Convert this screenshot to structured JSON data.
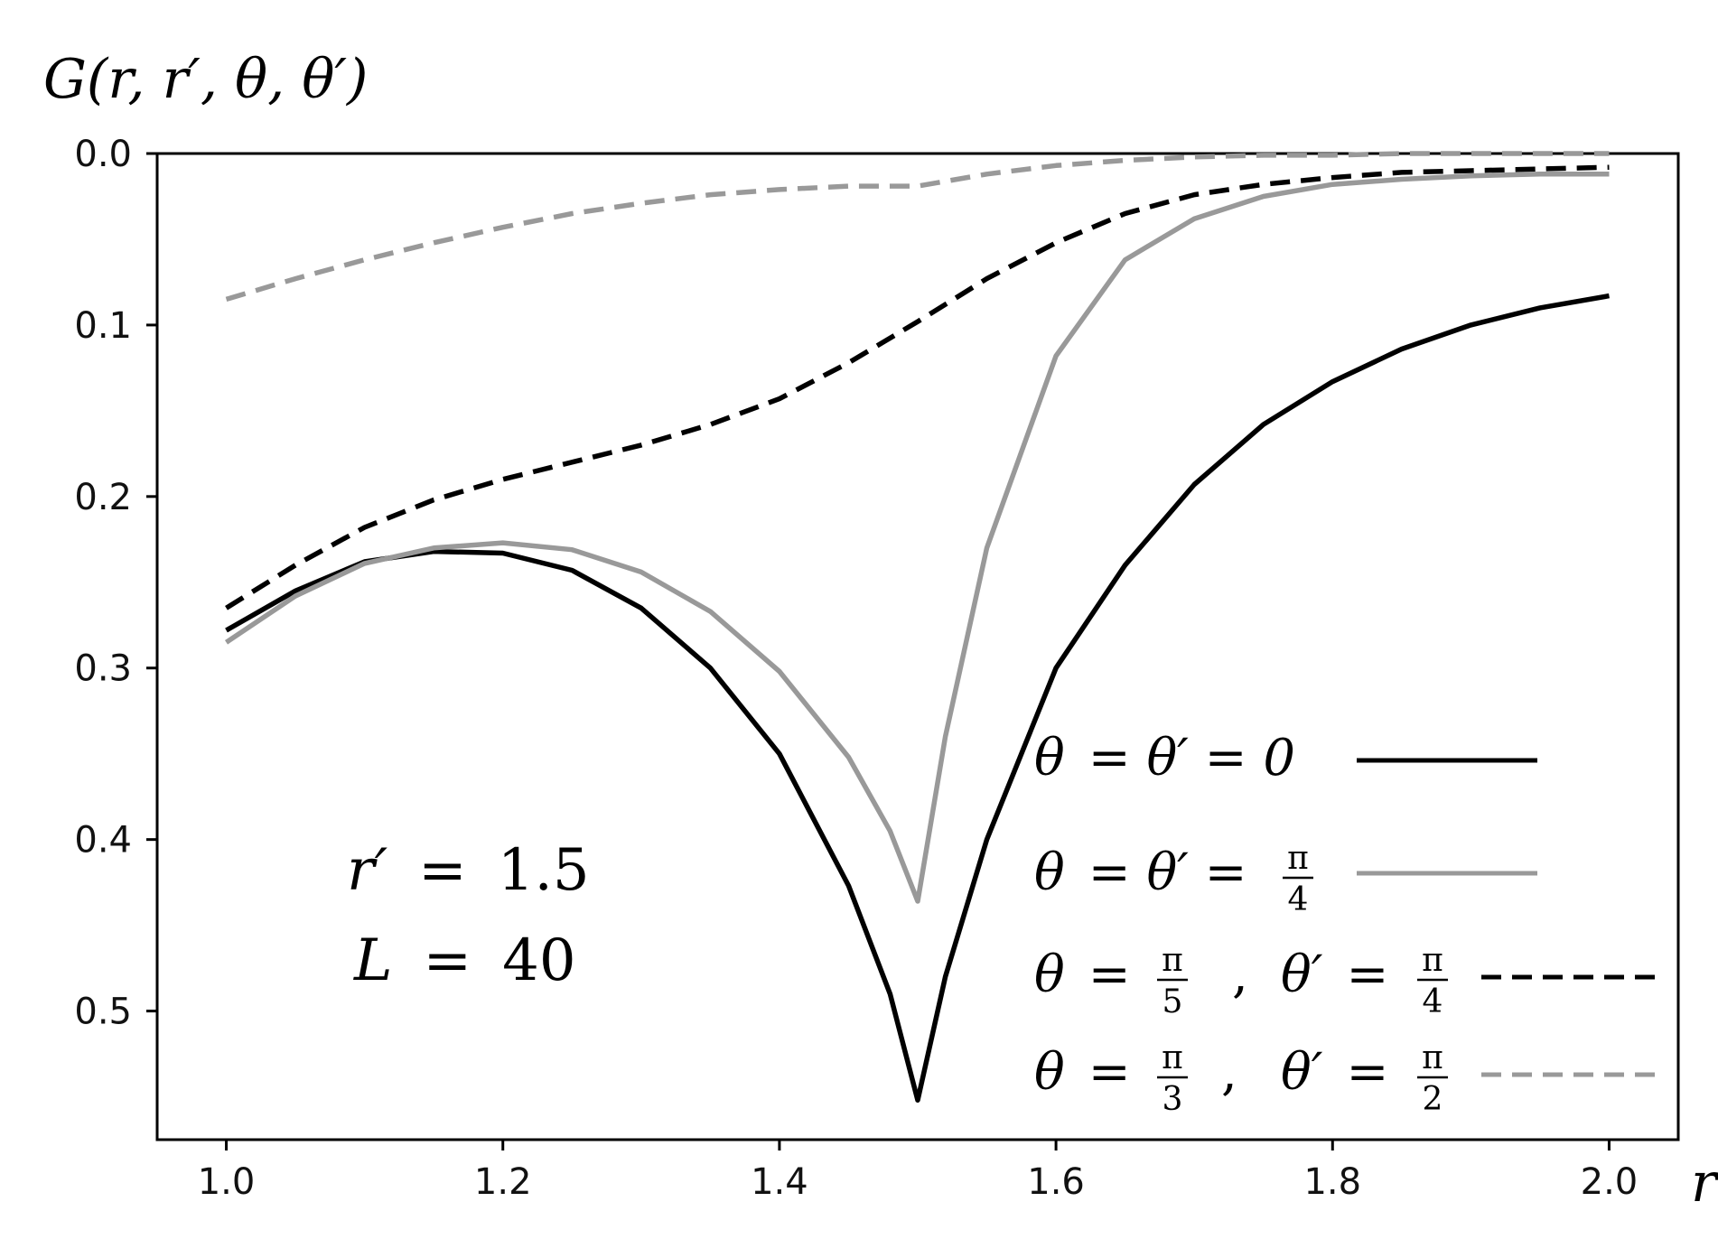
{
  "chart_data": {
    "type": "line",
    "ylabel": "G(r, r′, θ, θ′)",
    "xlabel": "r",
    "xlim": [
      0.95,
      2.05
    ],
    "ylim": [
      0.0,
      0.575
    ],
    "y_inverted": true,
    "x_ticks": [
      1.0,
      1.2,
      1.4,
      1.6,
      1.8,
      2.0
    ],
    "x_tick_labels": [
      "1.0",
      "1.2",
      "1.4",
      "1.6",
      "1.8",
      "2.0"
    ],
    "y_ticks": [
      0.0,
      0.1,
      0.2,
      0.3,
      0.4,
      0.5
    ],
    "y_tick_labels": [
      "0.0",
      "0.1",
      "0.2",
      "0.3",
      "0.4",
      "0.5"
    ],
    "grid": false,
    "legend_placement": "lower-right",
    "annotation": {
      "line1": {
        "lhs": "r′",
        "eq": "=",
        "rhs": "1.5"
      },
      "line2": {
        "lhs": "L",
        "eq": "=",
        "rhs": "40"
      }
    },
    "series": [
      {
        "legend": {
          "theta": "θ",
          "rest": "= θ′ = 0"
        },
        "color": "#000000",
        "dash": "solid",
        "x": [
          1.0,
          1.05,
          1.1,
          1.15,
          1.2,
          1.25,
          1.3,
          1.35,
          1.4,
          1.45,
          1.48,
          1.5,
          1.52,
          1.55,
          1.6,
          1.65,
          1.7,
          1.75,
          1.8,
          1.85,
          1.9,
          1.95,
          2.0
        ],
        "y": [
          0.278,
          0.255,
          0.238,
          0.232,
          0.233,
          0.243,
          0.265,
          0.3,
          0.35,
          0.427,
          0.49,
          0.552,
          0.48,
          0.4,
          0.3,
          0.24,
          0.193,
          0.158,
          0.133,
          0.114,
          0.1,
          0.09,
          0.083
        ]
      },
      {
        "legend": {
          "theta": "θ",
          "rest": "= θ′ =",
          "frac": {
            "num": "π",
            "den": "4"
          }
        },
        "color": "#999999",
        "dash": "solid",
        "x": [
          1.0,
          1.05,
          1.1,
          1.15,
          1.2,
          1.25,
          1.3,
          1.35,
          1.4,
          1.45,
          1.48,
          1.5,
          1.52,
          1.55,
          1.6,
          1.65,
          1.7,
          1.75,
          1.8,
          1.85,
          1.9,
          1.95,
          2.0
        ],
        "y": [
          0.285,
          0.258,
          0.239,
          0.23,
          0.227,
          0.231,
          0.244,
          0.267,
          0.302,
          0.352,
          0.395,
          0.436,
          0.34,
          0.23,
          0.118,
          0.062,
          0.038,
          0.025,
          0.018,
          0.015,
          0.013,
          0.012,
          0.012
        ]
      },
      {
        "legend": {
          "theta": "θ",
          "rest": "=",
          "frac": {
            "num": "π",
            "den": "5"
          },
          "sep": ",",
          "theta2": "θ′",
          "rest2": "=",
          "frac2": {
            "num": "π",
            "den": "4"
          }
        },
        "color": "#000000",
        "dash": "dashed",
        "x": [
          1.0,
          1.05,
          1.1,
          1.15,
          1.2,
          1.25,
          1.3,
          1.35,
          1.4,
          1.45,
          1.5,
          1.55,
          1.6,
          1.65,
          1.7,
          1.75,
          1.8,
          1.85,
          1.9,
          1.95,
          2.0
        ],
        "y": [
          0.265,
          0.24,
          0.218,
          0.202,
          0.19,
          0.18,
          0.17,
          0.158,
          0.143,
          0.122,
          0.098,
          0.073,
          0.052,
          0.035,
          0.024,
          0.018,
          0.014,
          0.011,
          0.01,
          0.009,
          0.008
        ]
      },
      {
        "legend": {
          "theta": "θ",
          "rest": "=",
          "frac": {
            "num": "π",
            "den": "3"
          },
          "sep": ",",
          "theta2": "θ′",
          "rest2": "=",
          "frac2": {
            "num": "π",
            "den": "2"
          }
        },
        "color": "#999999",
        "dash": "dashed",
        "x": [
          1.0,
          1.05,
          1.1,
          1.15,
          1.2,
          1.25,
          1.3,
          1.35,
          1.4,
          1.45,
          1.5,
          1.55,
          1.6,
          1.65,
          1.7,
          1.75,
          1.8,
          1.85,
          1.9,
          1.95,
          2.0
        ],
        "y": [
          0.085,
          0.073,
          0.062,
          0.052,
          0.043,
          0.035,
          0.029,
          0.024,
          0.021,
          0.019,
          0.019,
          0.012,
          0.007,
          0.004,
          0.002,
          0.001,
          0.001,
          0.0,
          0.0,
          0.0,
          0.0
        ]
      }
    ]
  }
}
